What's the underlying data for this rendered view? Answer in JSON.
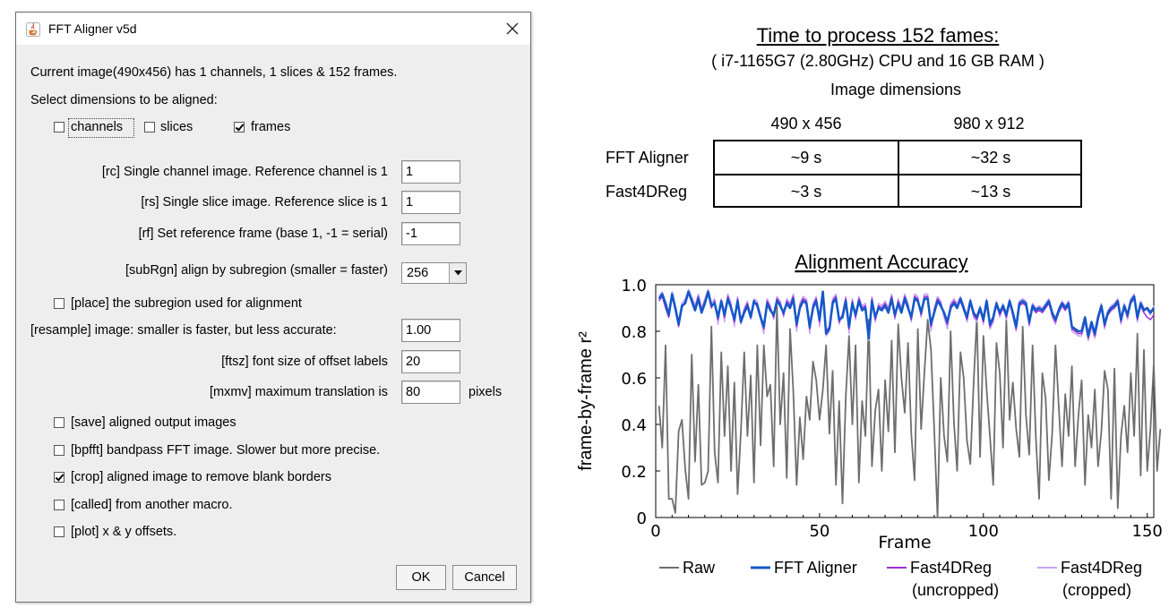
{
  "dialog": {
    "title": "FFT Aligner v5d",
    "info_text": "Current image(490x456) has 1 channels, 1 slices & 152 frames.",
    "select_label": "Select dimensions to be aligned:",
    "dims": {
      "channels": {
        "label": "channels",
        "checked": false
      },
      "slices": {
        "label": "slices",
        "checked": false
      },
      "frames": {
        "label": "frames",
        "checked": true
      }
    },
    "fields": {
      "rc": {
        "label": "[rc] Single channel image. Reference channel is 1",
        "value": "1"
      },
      "rs": {
        "label": "[rs] Single slice image. Reference slice is 1",
        "value": "1"
      },
      "rf": {
        "label": "[rf] Set reference frame (base 1, -1 = serial)",
        "value": "-1"
      },
      "subRgn": {
        "label": "[subRgn] align by subregion (smaller = faster)",
        "value": "256"
      },
      "resample": {
        "label": "[resample] image:  smaller is faster, but less accurate:",
        "value": "1.00"
      },
      "ftsz": {
        "label": "[ftsz] font size of offset labels",
        "value": "20"
      },
      "mxmv": {
        "label": "[mxmv] maximum translation is",
        "value": "80",
        "unit": "pixels"
      }
    },
    "options": {
      "place": {
        "label": "[place] the subregion used for alignment",
        "checked": false
      },
      "save": {
        "label": "[save] aligned output images",
        "checked": false
      },
      "bpfft": {
        "label": "[bpfft] bandpass FFT image. Slower but more precise.",
        "checked": false
      },
      "crop": {
        "label": "[crop] aligned image to remove blank borders",
        "checked": true
      },
      "called": {
        "label": "[called] from another macro.",
        "checked": false
      },
      "plot": {
        "label": "[plot] x & y offsets.",
        "checked": false
      }
    },
    "ok_label": "OK",
    "cancel_label": "Cancel"
  },
  "timing": {
    "title": "Time to process 152 fames:",
    "subtitle": "( i7-1165G7 (2.80GHz) CPU and 16 GB RAM )",
    "dims_label": "Image dimensions",
    "columns": [
      "490 x 456",
      "980 x 912"
    ],
    "rows": [
      {
        "label": "FFT Aligner",
        "values": [
          "~9 s",
          "~32 s"
        ]
      },
      {
        "label": "Fast4DReg",
        "values": [
          "~3 s",
          "~13 s"
        ]
      }
    ]
  },
  "chart_data": {
    "type": "line",
    "title": "Alignment Accuracy",
    "xlabel": "Frame",
    "ylabel": "frame-by-frame r²",
    "xlim": [
      0,
      152
    ],
    "ylim": [
      0,
      1.0
    ],
    "xticks": [
      0,
      50,
      100,
      150
    ],
    "yticks": [
      0,
      0.2,
      0.4,
      0.6,
      0.8,
      1.0
    ],
    "ytick_labels": [
      "0",
      "0.2",
      "0.4",
      "0.6",
      "0.8",
      "1.0"
    ],
    "series": [
      {
        "name": "Raw",
        "color": "#6e6e6e",
        "values": [
          0.48,
          0.3,
          0.74,
          0.08,
          0.08,
          0.02,
          0.37,
          0.42,
          0.21,
          0.08,
          0.7,
          0.24,
          0.57,
          0.14,
          0.15,
          0.2,
          0.82,
          0.28,
          0.15,
          0.71,
          0.35,
          0.65,
          0.2,
          0.58,
          0.1,
          0.37,
          0.71,
          0.35,
          0.61,
          0.15,
          0.74,
          0.31,
          0.74,
          0.52,
          0.57,
          0.22,
          0.91,
          0.4,
          0.62,
          0.17,
          0.81,
          0.54,
          0.14,
          0.43,
          0.25,
          0.52,
          0.42,
          0.67,
          0.59,
          0.42,
          0.55,
          0.74,
          0.36,
          0.63,
          0.14,
          0.5,
          0.06,
          0.52,
          0.78,
          0.4,
          0.74,
          0.15,
          0.5,
          0.35,
          0.85,
          0.22,
          0.46,
          0.55,
          0.2,
          0.59,
          0.37,
          0.76,
          0.28,
          0.83,
          0.6,
          0.45,
          0.75,
          0.36,
          0.16,
          0.81,
          0.38,
          0.62,
          0.85,
          0.72,
          0.38,
          0.0,
          0.6,
          0.35,
          0.24,
          0.8,
          0.41,
          0.2,
          0.71,
          0.6,
          0.33,
          0.23,
          0.57,
          0.86,
          0.26,
          0.78,
          0.55,
          0.35,
          0.14,
          0.75,
          0.62,
          0.3,
          0.85,
          0.42,
          0.58,
          0.38,
          0.26,
          0.82,
          0.44,
          0.27,
          0.74,
          0.35,
          0.08,
          0.62,
          0.51,
          0.16,
          0.36,
          0.74,
          0.48,
          0.22,
          0.53,
          0.35,
          0.65,
          0.22,
          0.44,
          0.59,
          0.14,
          0.44,
          0.3,
          0.55,
          0.22,
          0.37,
          0.63,
          0.55,
          0.08,
          0.64,
          0.04,
          0.35,
          0.48,
          0.28,
          0.62,
          0.35,
          0.79,
          0.18,
          0.72,
          0.2,
          0.38,
          0.66,
          0.2,
          0.38
        ]
      },
      {
        "name": "FFT Aligner",
        "color": "#1557c9",
        "values": [
          0.94,
          0.96,
          0.92,
          0.87,
          0.96,
          0.9,
          0.83,
          0.91,
          0.92,
          0.97,
          0.93,
          0.89,
          0.94,
          0.88,
          0.92,
          0.97,
          0.91,
          0.92,
          0.86,
          0.93,
          0.87,
          0.94,
          0.9,
          0.85,
          0.93,
          0.84,
          0.88,
          0.91,
          0.86,
          0.93,
          0.91,
          0.86,
          0.82,
          0.92,
          0.89,
          0.87,
          0.93,
          0.91,
          0.88,
          0.92,
          0.9,
          0.94,
          0.83,
          0.9,
          0.93,
          0.92,
          0.82,
          0.9,
          0.93,
          0.85,
          0.97,
          0.79,
          0.81,
          0.92,
          0.94,
          0.85,
          0.86,
          0.93,
          0.82,
          0.92,
          0.87,
          0.93,
          0.89,
          0.9,
          0.77,
          0.93,
          0.86,
          0.9,
          0.89,
          0.91,
          0.88,
          0.94,
          0.87,
          0.92,
          0.88,
          0.94,
          0.9,
          0.86,
          0.94,
          0.93,
          0.88,
          0.94,
          0.94,
          0.83,
          0.88,
          0.93,
          0.91,
          0.88,
          0.84,
          0.9,
          0.92,
          0.9,
          0.94,
          0.9,
          0.86,
          0.93,
          0.88,
          0.86,
          0.9,
          0.85,
          0.93,
          0.83,
          0.86,
          0.92,
          0.88,
          0.91,
          0.87,
          0.93,
          0.88,
          0.82,
          0.92,
          0.93,
          0.92,
          0.84,
          0.91,
          0.89,
          0.9,
          0.89,
          0.91,
          0.93,
          0.88,
          0.85,
          0.89,
          0.92,
          0.9,
          0.92,
          0.82,
          0.81,
          0.8,
          0.8,
          0.86,
          0.78,
          0.84,
          0.79,
          0.86,
          0.91,
          0.83,
          0.88,
          0.9,
          0.91,
          0.93,
          0.85,
          0.91,
          0.87,
          0.93,
          0.95,
          0.86,
          0.92,
          0.89,
          0.9,
          0.88,
          0.9
        ]
      },
      {
        "name": "Fast4DReg (uncropped)",
        "color": "#9b2fd6",
        "values": [
          0.93,
          0.95,
          0.9,
          0.86,
          0.95,
          0.89,
          0.82,
          0.9,
          0.93,
          0.96,
          0.94,
          0.9,
          0.95,
          0.89,
          0.93,
          0.96,
          0.9,
          0.93,
          0.85,
          0.92,
          0.86,
          0.95,
          0.91,
          0.84,
          0.94,
          0.85,
          0.89,
          0.92,
          0.87,
          0.92,
          0.92,
          0.87,
          0.81,
          0.93,
          0.9,
          0.86,
          0.94,
          0.92,
          0.87,
          0.93,
          0.91,
          0.95,
          0.82,
          0.91,
          0.94,
          0.93,
          0.81,
          0.91,
          0.94,
          0.84,
          0.96,
          0.8,
          0.82,
          0.93,
          0.95,
          0.84,
          0.87,
          0.94,
          0.81,
          0.93,
          0.86,
          0.94,
          0.9,
          0.91,
          0.78,
          0.94,
          0.85,
          0.91,
          0.9,
          0.92,
          0.89,
          0.95,
          0.86,
          0.93,
          0.89,
          0.95,
          0.91,
          0.85,
          0.95,
          0.94,
          0.87,
          0.95,
          0.95,
          0.82,
          0.89,
          0.94,
          0.92,
          0.87,
          0.83,
          0.91,
          0.93,
          0.91,
          0.93,
          0.89,
          0.85,
          0.92,
          0.87,
          0.85,
          0.89,
          0.84,
          0.92,
          0.82,
          0.85,
          0.91,
          0.87,
          0.9,
          0.86,
          0.92,
          0.87,
          0.81,
          0.91,
          0.92,
          0.91,
          0.83,
          0.9,
          0.88,
          0.89,
          0.88,
          0.9,
          0.92,
          0.87,
          0.84,
          0.88,
          0.91,
          0.89,
          0.91,
          0.81,
          0.8,
          0.79,
          0.79,
          0.85,
          0.77,
          0.83,
          0.78,
          0.85,
          0.9,
          0.82,
          0.87,
          0.89,
          0.9,
          0.92,
          0.84,
          0.9,
          0.86,
          0.92,
          0.94,
          0.85,
          0.91,
          0.88,
          0.86,
          0.85,
          0.87
        ]
      },
      {
        "name": "Fast4DReg (cropped)",
        "color": "#c8a4f2",
        "values": [
          0.95,
          0.97,
          0.91,
          0.88,
          0.97,
          0.91,
          0.84,
          0.92,
          0.94,
          0.98,
          0.95,
          0.91,
          0.96,
          0.9,
          0.94,
          0.98,
          0.92,
          0.94,
          0.83,
          0.94,
          0.84,
          0.96,
          0.92,
          0.82,
          0.95,
          0.83,
          0.9,
          0.93,
          0.85,
          0.94,
          0.93,
          0.85,
          0.79,
          0.94,
          0.91,
          0.85,
          0.95,
          0.93,
          0.86,
          0.94,
          0.92,
          0.96,
          0.8,
          0.92,
          0.95,
          0.94,
          0.79,
          0.92,
          0.95,
          0.82,
          0.97,
          0.78,
          0.8,
          0.94,
          0.96,
          0.83,
          0.88,
          0.95,
          0.79,
          0.94,
          0.85,
          0.95,
          0.91,
          0.92,
          0.76,
          0.95,
          0.84,
          0.92,
          0.91,
          0.93,
          0.9,
          0.96,
          0.85,
          0.94,
          0.9,
          0.96,
          0.92,
          0.84,
          0.96,
          0.95,
          0.86,
          0.96,
          0.96,
          0.8,
          0.9,
          0.95,
          0.93,
          0.86,
          0.81,
          0.92,
          0.94,
          0.92,
          0.95,
          0.91,
          0.84,
          0.94,
          0.86,
          0.84,
          0.91,
          0.83,
          0.94,
          0.81,
          0.84,
          0.93,
          0.86,
          0.92,
          0.85,
          0.94,
          0.86,
          0.8,
          0.93,
          0.94,
          0.93,
          0.82,
          0.92,
          0.9,
          0.91,
          0.9,
          0.92,
          0.94,
          0.86,
          0.83,
          0.9,
          0.93,
          0.91,
          0.93,
          0.8,
          0.79,
          0.78,
          0.78,
          0.84,
          0.76,
          0.82,
          0.77,
          0.84,
          0.92,
          0.81,
          0.89,
          0.91,
          0.92,
          0.94,
          0.83,
          0.92,
          0.85,
          0.94,
          0.96,
          0.84,
          0.93,
          0.9,
          0.89,
          0.87,
          0.91
        ]
      }
    ],
    "legend": [
      {
        "label": "Raw",
        "color": "#6e6e6e"
      },
      {
        "label": "FFT Aligner",
        "color": "#1557c9"
      },
      {
        "label": "Fast4DReg",
        "sublabel": "(uncropped)",
        "color": "#9b2fd6"
      },
      {
        "label": "Fast4DReg",
        "sublabel": "(cropped)",
        "color": "#c8a4f2"
      }
    ],
    "legend_position": "bottom"
  }
}
